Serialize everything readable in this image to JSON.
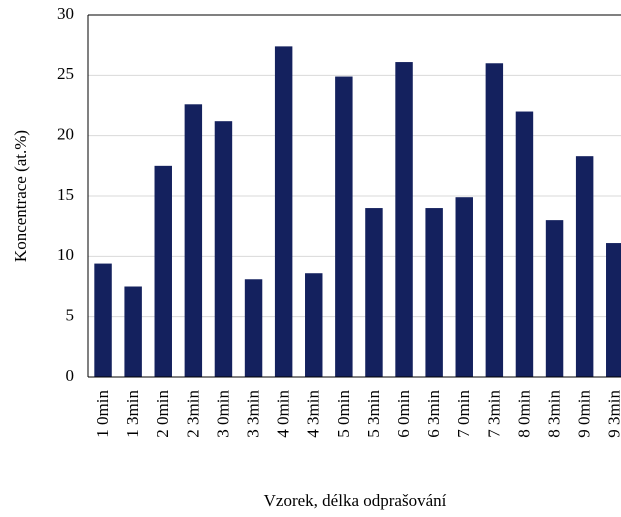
{
  "chart_data": {
    "type": "bar",
    "y_label": "Koncentrace (at.%)",
    "x_label": "Vzorek,  délka odprašování",
    "categories": [
      "1 0min",
      "1 3min",
      "2 0min",
      "2 3min",
      "3 0min",
      "3 3min",
      "4 0min",
      "4 3min",
      "5 0min",
      "5 3min",
      "6 0min",
      "6 3min",
      "7 0min",
      "7 3min",
      "8 0min",
      "8 3min",
      "9 0min",
      "9 3min"
    ],
    "values": [
      9.4,
      7.5,
      17.5,
      22.6,
      21.2,
      8.1,
      27.4,
      8.6,
      24.9,
      14.0,
      26.1,
      14.0,
      14.9,
      26.0,
      22.0,
      13.0,
      18.3,
      11.1
    ],
    "color": "#14215e",
    "ylim": [
      0,
      30
    ],
    "yticks": [
      0,
      5,
      10,
      15,
      20,
      25,
      30
    ],
    "grid": true
  }
}
